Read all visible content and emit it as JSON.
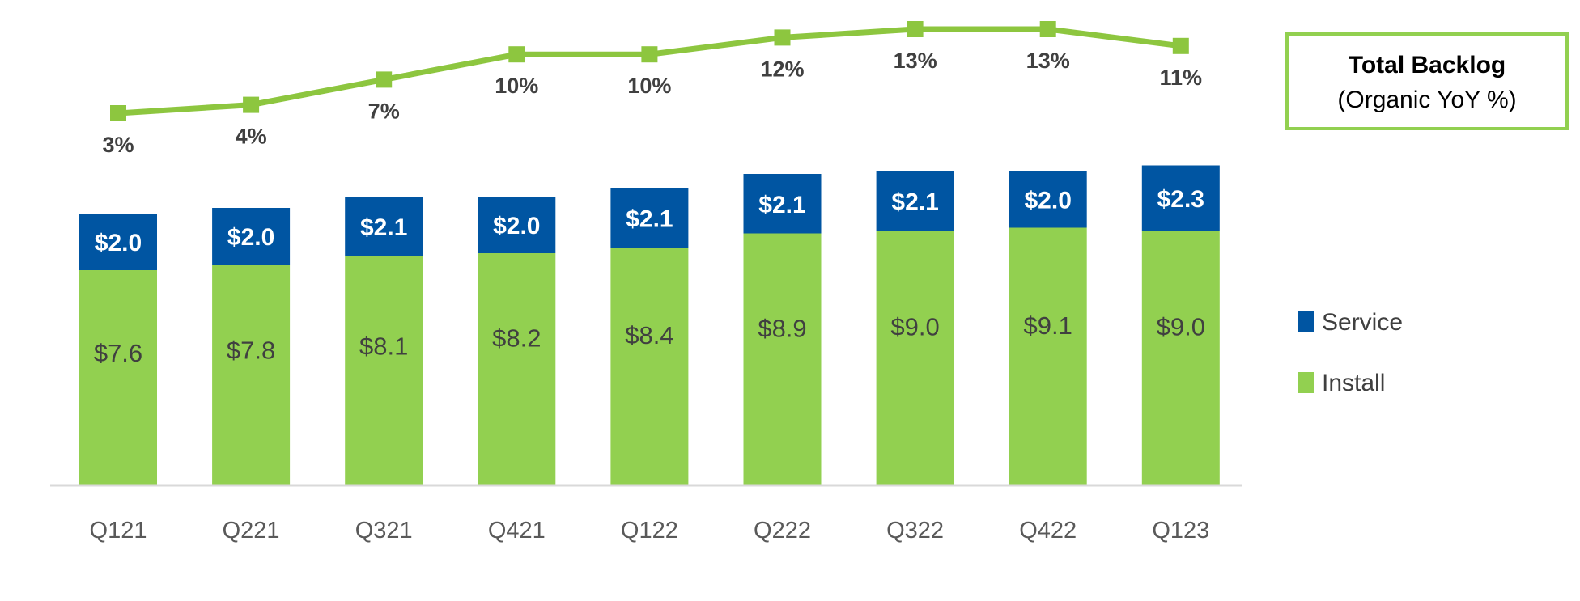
{
  "chart_data": {
    "type": "bar",
    "stacked": true,
    "categories": [
      "Q121",
      "Q221",
      "Q321",
      "Q421",
      "Q122",
      "Q222",
      "Q322",
      "Q422",
      "Q123"
    ],
    "series": [
      {
        "name": "Install",
        "values": [
          7.6,
          7.8,
          8.1,
          8.2,
          8.4,
          8.9,
          9.0,
          9.1,
          9.0
        ],
        "labels": [
          "$7.6",
          "$7.8",
          "$8.1",
          "$8.2",
          "$8.4",
          "$8.9",
          "$9.0",
          "$9.1",
          "$9.0"
        ],
        "color": "#92D050"
      },
      {
        "name": "Service",
        "values": [
          2.0,
          2.0,
          2.1,
          2.0,
          2.1,
          2.1,
          2.1,
          2.0,
          2.3
        ],
        "labels": [
          "$2.0",
          "$2.0",
          "$2.1",
          "$2.0",
          "$2.1",
          "$2.1",
          "$2.1",
          "$2.0",
          "$2.3"
        ],
        "color": "#0055A2"
      }
    ],
    "line": {
      "values": [
        3,
        4,
        7,
        10,
        10,
        12,
        13,
        13,
        11
      ],
      "labels": [
        "3%",
        "4%",
        "7%",
        "10%",
        "10%",
        "12%",
        "13%",
        "13%",
        "11%"
      ],
      "color": "#8DC63F",
      "marker": "square"
    },
    "line_legend": {
      "title": "Total Backlog",
      "subtitle": "(Organic YoY %)"
    },
    "legend": {
      "placement": "right",
      "entries": [
        "Service",
        "Install"
      ]
    },
    "grid": false,
    "axis_color": "#D9D9D9"
  }
}
